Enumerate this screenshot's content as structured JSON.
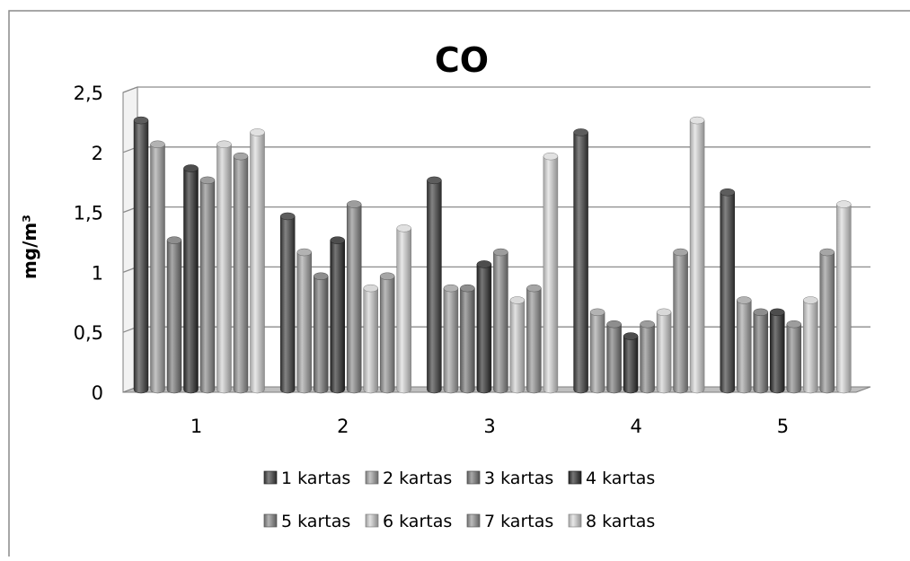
{
  "chart_data": {
    "type": "bar",
    "title": "CO",
    "xlabel": "",
    "ylabel": "mg/m³",
    "categories": [
      "1",
      "2",
      "3",
      "4",
      "5"
    ],
    "y_ticks": [
      "0",
      "0,5",
      "1",
      "1,5",
      "2",
      "2,5"
    ],
    "ylim": [
      0,
      2.5
    ],
    "grid": true,
    "legend_position": "bottom",
    "series": [
      {
        "name": "1 kartas",
        "values": [
          2.2,
          1.4,
          1.7,
          2.1,
          1.6
        ],
        "color": "#404040"
      },
      {
        "name": "2 kartas",
        "values": [
          2.0,
          1.1,
          0.8,
          0.6,
          0.7
        ],
        "color": "#a6a6a6"
      },
      {
        "name": "3 kartas",
        "values": [
          1.2,
          0.9,
          0.8,
          0.5,
          0.6
        ],
        "color": "#7a7a7a"
      },
      {
        "name": "4 kartas",
        "values": [
          1.8,
          1.2,
          1.0,
          0.4,
          0.6
        ],
        "color": "#2e2e2e"
      },
      {
        "name": "5 kartas",
        "values": [
          1.7,
          1.5,
          1.1,
          0.5,
          0.5
        ],
        "color": "#8c8c8c"
      },
      {
        "name": "6 kartas",
        "values": [
          2.0,
          0.8,
          0.7,
          0.6,
          0.7
        ],
        "color": "#d2d2d2"
      },
      {
        "name": "7 kartas",
        "values": [
          1.9,
          0.9,
          0.8,
          1.1,
          1.1
        ],
        "color": "#969696"
      },
      {
        "name": "8 kartas",
        "values": [
          2.1,
          1.3,
          1.9,
          2.2,
          1.5
        ],
        "color": "#dcdcdc"
      }
    ]
  }
}
